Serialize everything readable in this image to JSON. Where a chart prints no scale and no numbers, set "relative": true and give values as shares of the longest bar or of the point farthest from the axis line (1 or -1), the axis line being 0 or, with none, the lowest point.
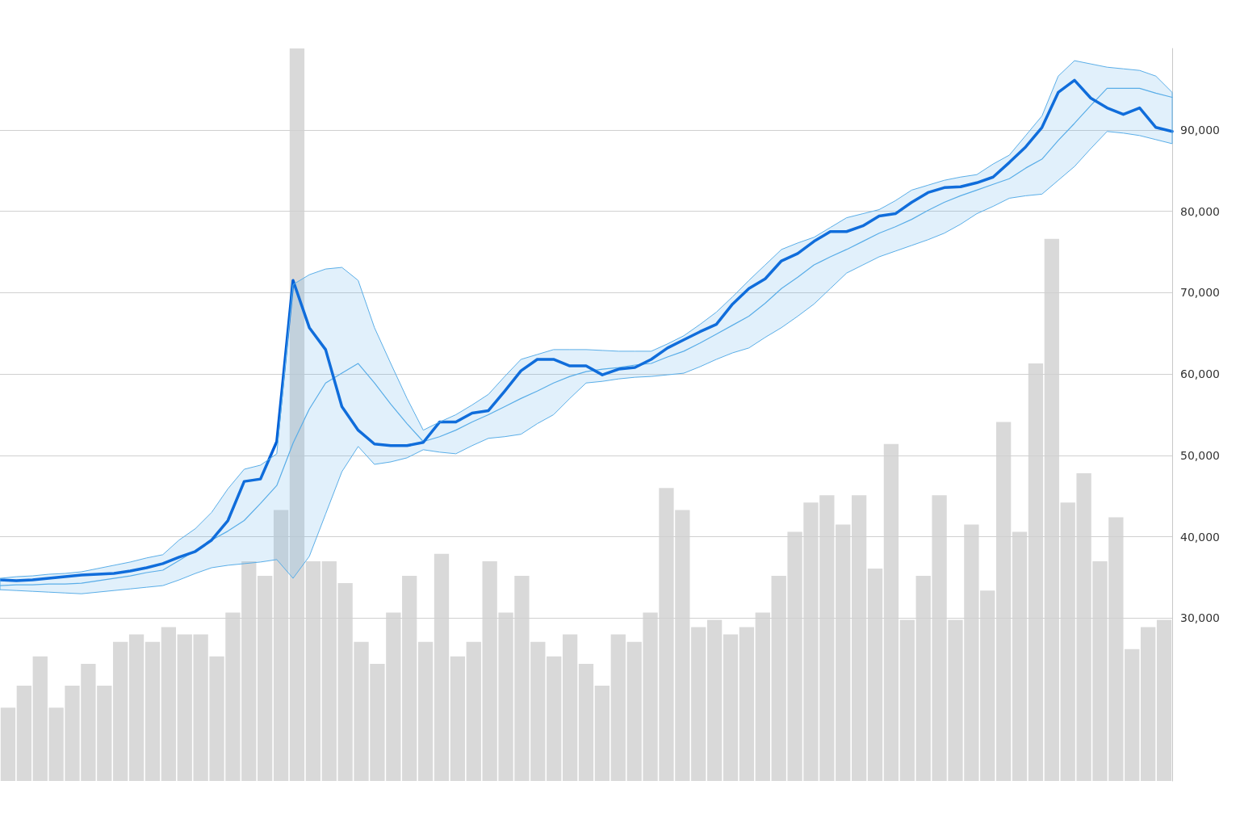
{
  "chart_data": [
    {
      "type": "line",
      "categories": [
        null,
        null,
        null,
        null,
        null,
        null,
        null,
        null,
        null,
        null,
        null,
        null,
        null,
        null,
        null,
        null,
        null,
        null,
        null,
        null,
        null,
        null,
        null,
        null,
        null,
        null,
        null,
        null,
        null,
        null,
        null,
        null,
        null,
        null,
        null,
        null,
        null,
        null,
        null,
        null,
        null,
        null,
        null,
        null,
        null,
        null,
        null,
        null,
        null,
        null,
        null,
        null,
        null,
        null,
        null,
        null,
        null,
        null,
        null,
        null,
        null,
        null,
        null,
        null,
        null,
        null,
        null,
        null,
        null,
        null,
        null,
        null,
        null
      ],
      "series": [
        {
          "color": "#5aaee8",
          "values": [
            34000,
            34100,
            34100,
            34200,
            34200,
            34300,
            34600,
            34900,
            35200,
            35600,
            35900,
            37100,
            38300,
            39600,
            40700,
            42000,
            44100,
            46300,
            51500,
            55700,
            58900,
            60100,
            61300,
            58900,
            56300,
            53900,
            51700,
            52300,
            53100,
            54100,
            55000,
            56000,
            57000,
            57900,
            58900,
            59700,
            60300,
            60600,
            60800,
            61100,
            61300,
            62100,
            62800,
            63800,
            64900,
            66000,
            67100,
            68700,
            70500,
            71900,
            73400,
            74400,
            75300,
            76300,
            77300,
            78100,
            79000,
            80100,
            81100,
            81900,
            82600,
            83300,
            84000,
            85300,
            86400,
            88700,
            90800,
            93000,
            95100,
            95100,
            95100,
            94500,
            94000
          ],
          "lower": [
            33500,
            33400,
            33300,
            33200,
            33100,
            33000,
            33200,
            33400,
            33600,
            33800,
            34000,
            34700,
            35500,
            36200,
            36500,
            36700,
            36900,
            37200,
            34900,
            37600,
            42800,
            48000,
            51100,
            48900,
            49200,
            49700,
            50700,
            50400,
            50200,
            51200,
            52100,
            52300,
            52600,
            53900,
            55000,
            57000,
            58900,
            59100,
            59400,
            59600,
            59700,
            59900,
            60100,
            60900,
            61800,
            62600,
            63200,
            64500,
            65700,
            67100,
            68600,
            70500,
            72400,
            73400,
            74400,
            75100,
            75800,
            76500,
            77300,
            78400,
            79700,
            80600,
            81600,
            81900,
            82100,
            83800,
            85500,
            87700,
            89800,
            89600,
            89300,
            88800,
            88300
          ],
          "upper": [
            34900,
            35100,
            35200,
            35400,
            35500,
            35700,
            36100,
            36500,
            36900,
            37400,
            37800,
            39600,
            41000,
            43000,
            45900,
            48300,
            48800,
            50200,
            71000,
            72200,
            72900,
            73100,
            71500,
            65700,
            61300,
            57000,
            53100,
            54100,
            55000,
            56200,
            57500,
            59700,
            61800,
            62400,
            63000,
            63000,
            63000,
            62900,
            62800,
            62800,
            62800,
            63700,
            64700,
            66100,
            67600,
            69500,
            71500,
            73400,
            75300,
            76100,
            76800,
            78000,
            79200,
            79700,
            80200,
            81300,
            82600,
            83200,
            83800,
            84200,
            84500,
            85800,
            86900,
            89300,
            91700,
            96600,
            98500,
            98100,
            97700,
            97500,
            97300,
            96600,
            94600
          ]
        },
        {
          "color": "#0060d8",
          "values": [
            34700,
            34600,
            34700,
            34900,
            35100,
            35300,
            35400,
            35500,
            35800,
            36200,
            36700,
            37500,
            38200,
            39600,
            42000,
            46800,
            47100,
            51700,
            71500,
            65700,
            63000,
            56000,
            53100,
            51400,
            51200,
            51200,
            51600,
            54100,
            54100,
            55200,
            55500,
            57900,
            60400,
            61800,
            61800,
            61000,
            61000,
            59900,
            60600,
            60800,
            61800,
            63200,
            64200,
            65200,
            66100,
            68600,
            70500,
            71700,
            73900,
            74800,
            76300,
            77500,
            77500,
            78200,
            79400,
            79700,
            81100,
            82300,
            82900,
            83000,
            83500,
            84200,
            86000,
            87900,
            90300,
            94600,
            96100,
            93900,
            92700,
            91900,
            92700,
            90300,
            89800
          ]
        }
      ],
      "ylim": [
        10000,
        100000
      ],
      "yticks": [
        {
          "value": 30000,
          "label": "30,000"
        },
        {
          "value": 40000,
          "label": "40,000"
        },
        {
          "value": 50000,
          "label": "50,000"
        },
        {
          "value": 60000,
          "label": "60,000"
        },
        {
          "value": 70000,
          "label": "70,000"
        },
        {
          "value": 80000,
          "label": "80,000"
        },
        {
          "value": 90000,
          "label": "90,000"
        }
      ],
      "grid": "y",
      "tick_labels": "y",
      "marker": "none",
      "line_style": "solid"
    },
    {
      "type": "bar",
      "relative": true,
      "color": "#d9d9d9",
      "categories": [
        null,
        null,
        null,
        null,
        null,
        null,
        null,
        null,
        null,
        null,
        null,
        null,
        null,
        null,
        null,
        null,
        null,
        null,
        null,
        null,
        null,
        null,
        null,
        null,
        null,
        null,
        null,
        null,
        null,
        null,
        null,
        null,
        null,
        null,
        null,
        null,
        null,
        null,
        null,
        null,
        null,
        null,
        null,
        null,
        null,
        null,
        null,
        null,
        null,
        null,
        null,
        null,
        null,
        null,
        null,
        null,
        null,
        null,
        null,
        null,
        null,
        null,
        null,
        null,
        null,
        null,
        null,
        null,
        null,
        null,
        null,
        null,
        null
      ],
      "values": [
        0.1,
        0.13,
        0.17,
        0.1,
        0.13,
        0.16,
        0.13,
        0.19,
        0.2,
        0.19,
        0.21,
        0.2,
        0.2,
        0.17,
        0.23,
        0.3,
        0.28,
        0.37,
        1.0,
        0.3,
        0.3,
        0.27,
        0.19,
        0.16,
        0.23,
        0.28,
        0.19,
        0.31,
        0.17,
        0.19,
        0.3,
        0.23,
        0.28,
        0.19,
        0.17,
        0.2,
        0.16,
        0.13,
        0.2,
        0.19,
        0.23,
        0.4,
        0.37,
        0.21,
        0.22,
        0.2,
        0.21,
        0.23,
        0.28,
        0.34,
        0.38,
        0.39,
        0.35,
        0.39,
        0.29,
        0.46,
        0.22,
        0.28,
        0.39,
        0.22,
        0.35,
        0.26,
        0.49,
        0.34,
        0.57,
        0.74,
        0.38,
        0.42,
        0.3,
        0.36,
        0.18,
        0.21,
        0.22
      ]
    }
  ]
}
